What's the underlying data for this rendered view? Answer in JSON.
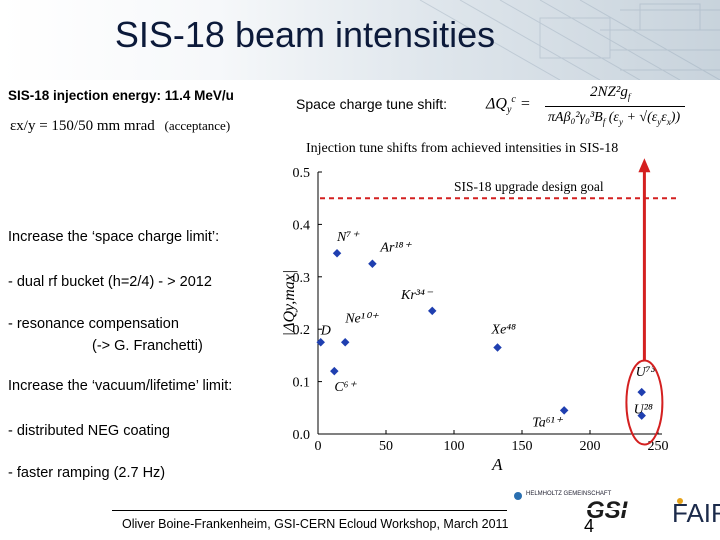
{
  "slide": {
    "title": "SIS-18 beam intensities",
    "injection_energy": "SIS-18 injection energy: 11.4 MeV/u",
    "acceptance_formula": "εx/y = 150/50 mm mrad",
    "acceptance_note": "(acceptance)",
    "tune_shift_label": "Space charge tune shift:",
    "tune_shift_lhs": "ΔQ",
    "tune_shift_num": "2NZ²g",
    "tune_shift_den": "πAβ₀²γ₀³B",
    "bullets": {
      "h1": "Increase the ‘space charge limit’:",
      "b1": "- dual rf bucket (h=2/4) - > 2012",
      "b2a": "- resonance compensation",
      "b2b": "(-> G. Franchetti)",
      "h2": "Increase the ‘vacuum/lifetime’ limit:",
      "b3": "- distributed NEG coating",
      "b4": "- faster ramping (2.7 Hz)"
    },
    "footer": "Oliver Boine-Frankenheim,  GSI-CERN Ecloud Workshop, March 2011",
    "page_number": "4",
    "logos": {
      "helmholtz": "HELMHOLTZ GEMEINSCHAFT",
      "gsi": "GSI",
      "fair": "FAIR"
    }
  },
  "chart_data": {
    "type": "scatter",
    "title": "Injection tune shifts from achieved intensities in SIS-18",
    "xlabel": "A",
    "ylabel": "|ΔQy,max|",
    "xlim": [
      0,
      250
    ],
    "ylim": [
      0,
      0.5
    ],
    "x_ticks": [
      "0",
      "50",
      "100",
      "150",
      "200",
      "250"
    ],
    "y_ticks": [
      "0.0",
      "0.1",
      "0.2",
      "0.3",
      "0.4",
      "0.5"
    ],
    "reference_line": {
      "y": 0.45,
      "label": "SIS-18 upgrade design goal",
      "color": "#d42020"
    },
    "marker_color": "#1f3fb0",
    "points": [
      {
        "x": 2,
        "y": 0.175,
        "label": "D"
      },
      {
        "x": 12,
        "y": 0.12,
        "label": "C⁶⁺"
      },
      {
        "x": 14,
        "y": 0.345,
        "label": "N⁷⁺"
      },
      {
        "x": 20,
        "y": 0.175,
        "label": "Ne¹⁰⁺"
      },
      {
        "x": 40,
        "y": 0.325,
        "label": "Ar¹⁸⁺"
      },
      {
        "x": 84,
        "y": 0.235,
        "label": "Kr³⁴⁻"
      },
      {
        "x": 132,
        "y": 0.165,
        "label": "Xe⁴⁸"
      },
      {
        "x": 181,
        "y": 0.045,
        "label": "Ta⁶¹⁺"
      },
      {
        "x": 238,
        "y": 0.08,
        "label": "U⁷³"
      },
      {
        "x": 238,
        "y": 0.035,
        "label": "U²⁸"
      }
    ],
    "highlight": {
      "label": "U points circled",
      "color": "#d42020"
    }
  }
}
